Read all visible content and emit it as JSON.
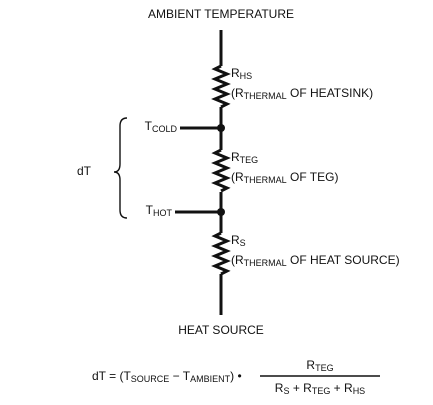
{
  "top_label": "AMBIENT TEMPERATURE",
  "bottom_label": "HEAT SOURCE",
  "span_label": "dT",
  "resistors": [
    {
      "symbol": [
        {
          "text": "R",
          "sub": "HS"
        }
      ],
      "description": [
        {
          "text": "(R",
          "sub": "THERMAL"
        },
        {
          "text": " OF HEATSINK)"
        }
      ]
    },
    {
      "symbol": [
        {
          "text": "R",
          "sub": "TEG"
        }
      ],
      "description": [
        {
          "text": "(R",
          "sub": "THERMAL"
        },
        {
          "text": " OF TEG)"
        }
      ]
    },
    {
      "symbol": [
        {
          "text": "R",
          "sub": "S"
        }
      ],
      "description": [
        {
          "text": "(R",
          "sub": "THERMAL"
        },
        {
          "text": " OF HEAT SOURCE)"
        }
      ]
    }
  ],
  "nodes": [
    [
      {
        "text": "T",
        "sub": "COLD"
      }
    ],
    [
      {
        "text": "T",
        "sub": "HOT"
      }
    ]
  ],
  "equation": {
    "lhs": [
      {
        "text": "dT = (T",
        "sub": "SOURCE"
      },
      {
        "text": " − T",
        "sub": "AMBIENT"
      },
      {
        "text": ") •"
      }
    ],
    "numerator": [
      {
        "text": "R",
        "sub": "TEG"
      }
    ],
    "denominator": [
      {
        "text": "R",
        "sub": "S"
      },
      {
        "text": " + R",
        "sub": "TEG"
      },
      {
        "text": " + R",
        "sub": "HS"
      }
    ]
  }
}
